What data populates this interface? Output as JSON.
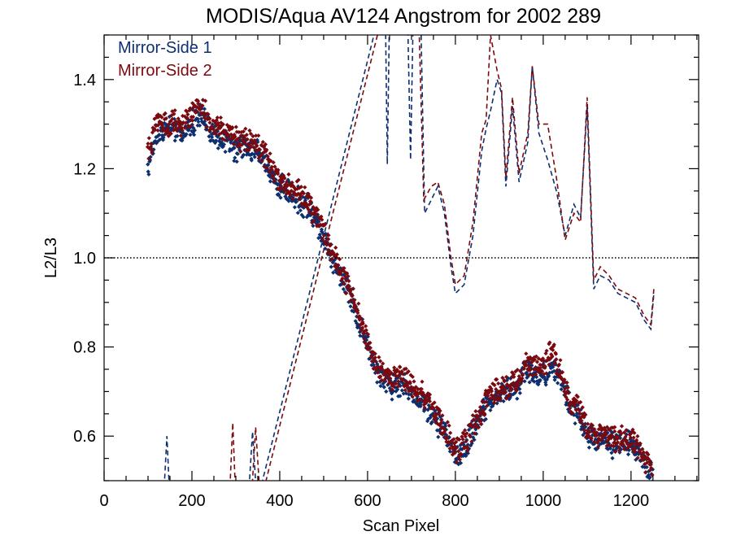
{
  "chart_data": {
    "type": "scatter",
    "title": "MODIS/Aqua AV124 Angstrom for 2002 289",
    "xlabel": "Scan Pixel",
    "ylabel": "L2/L3",
    "xlim": [
      0,
      1354
    ],
    "ylim": [
      0.5,
      1.5
    ],
    "x_ticks": [
      0,
      200,
      400,
      600,
      800,
      1000,
      1200
    ],
    "x_tick_labels": [
      "0",
      "200",
      "400",
      "600",
      "800",
      "1000",
      "1200"
    ],
    "y_ticks": [
      0.6,
      0.8,
      1.0,
      1.2,
      1.4
    ],
    "y_tick_labels": [
      "0.6",
      "0.8",
      "1.0",
      "1.2",
      "1.4"
    ],
    "reference_line": {
      "y": 1.0,
      "style": "dotted"
    },
    "legend_position": "top-left",
    "grid": false,
    "series": [
      {
        "name": "Mirror-Side 1",
        "color": "#0d2f6e",
        "marker": "diamond",
        "points_trend": [
          [
            100,
            1.2
          ],
          [
            120,
            1.28
          ],
          [
            150,
            1.29
          ],
          [
            180,
            1.28
          ],
          [
            200,
            1.3
          ],
          [
            220,
            1.33
          ],
          [
            240,
            1.28
          ],
          [
            260,
            1.27
          ],
          [
            280,
            1.26
          ],
          [
            300,
            1.24
          ],
          [
            320,
            1.25
          ],
          [
            340,
            1.24
          ],
          [
            360,
            1.23
          ],
          [
            380,
            1.19
          ],
          [
            400,
            1.16
          ],
          [
            420,
            1.15
          ],
          [
            440,
            1.13
          ],
          [
            460,
            1.12
          ],
          [
            480,
            1.09
          ],
          [
            500,
            1.05
          ],
          [
            520,
            1.0
          ],
          [
            540,
            0.96
          ],
          [
            560,
            0.92
          ],
          [
            580,
            0.86
          ],
          [
            600,
            0.8
          ],
          [
            620,
            0.75
          ],
          [
            640,
            0.72
          ],
          [
            660,
            0.71
          ],
          [
            680,
            0.72
          ],
          [
            700,
            0.7
          ],
          [
            720,
            0.68
          ],
          [
            740,
            0.66
          ],
          [
            760,
            0.63
          ],
          [
            780,
            0.6
          ],
          [
            800,
            0.55
          ],
          [
            820,
            0.57
          ],
          [
            840,
            0.61
          ],
          [
            860,
            0.65
          ],
          [
            880,
            0.68
          ],
          [
            900,
            0.69
          ],
          [
            920,
            0.7
          ],
          [
            940,
            0.71
          ],
          [
            960,
            0.75
          ],
          [
            980,
            0.74
          ],
          [
            1000,
            0.74
          ],
          [
            1020,
            0.76
          ],
          [
            1040,
            0.73
          ],
          [
            1060,
            0.67
          ],
          [
            1080,
            0.65
          ],
          [
            1100,
            0.6
          ],
          [
            1120,
            0.59
          ],
          [
            1140,
            0.6
          ],
          [
            1160,
            0.58
          ],
          [
            1180,
            0.59
          ],
          [
            1200,
            0.58
          ],
          [
            1220,
            0.56
          ],
          [
            1240,
            0.52
          ],
          [
            1250,
            0.51
          ]
        ],
        "dashed_line": [
          [
            135,
            0.45
          ],
          [
            143,
            0.6
          ],
          [
            150,
            0.45
          ],
          [
            328,
            0.45
          ],
          [
            338,
            0.61
          ],
          [
            348,
            0.45
          ],
          [
            640,
            1.6
          ],
          [
            645,
            1.21
          ],
          [
            650,
            1.55
          ],
          [
            660,
            1.6
          ],
          [
            690,
            1.6
          ],
          [
            698,
            1.22
          ],
          [
            705,
            1.6
          ],
          [
            720,
            1.6
          ],
          [
            730,
            1.1
          ],
          [
            745,
            1.13
          ],
          [
            760,
            1.16
          ],
          [
            775,
            1.1
          ],
          [
            790,
            0.98
          ],
          [
            800,
            0.92
          ],
          [
            820,
            0.94
          ],
          [
            840,
            1.05
          ],
          [
            860,
            1.24
          ],
          [
            870,
            1.29
          ],
          [
            880,
            1.33
          ],
          [
            895,
            1.4
          ],
          [
            905,
            1.37
          ],
          [
            915,
            1.16
          ],
          [
            930,
            1.34
          ],
          [
            945,
            1.17
          ],
          [
            965,
            1.26
          ],
          [
            975,
            1.43
          ],
          [
            990,
            1.28
          ],
          [
            1010,
            1.22
          ],
          [
            1030,
            1.15
          ],
          [
            1050,
            1.05
          ],
          [
            1070,
            1.12
          ],
          [
            1085,
            1.09
          ],
          [
            1100,
            1.34
          ],
          [
            1115,
            0.93
          ],
          [
            1130,
            0.96
          ],
          [
            1150,
            0.95
          ],
          [
            1170,
            0.92
          ],
          [
            1190,
            0.91
          ],
          [
            1210,
            0.9
          ],
          [
            1230,
            0.86
          ],
          [
            1245,
            0.84
          ],
          [
            1252,
            0.92
          ]
        ]
      },
      {
        "name": "Mirror-Side 2",
        "color": "#7a0a10",
        "marker": "diamond",
        "points_trend": [
          [
            100,
            1.23
          ],
          [
            120,
            1.31
          ],
          [
            150,
            1.3
          ],
          [
            180,
            1.3
          ],
          [
            200,
            1.32
          ],
          [
            220,
            1.35
          ],
          [
            240,
            1.3
          ],
          [
            260,
            1.29
          ],
          [
            280,
            1.28
          ],
          [
            300,
            1.27
          ],
          [
            320,
            1.26
          ],
          [
            340,
            1.26
          ],
          [
            360,
            1.24
          ],
          [
            380,
            1.21
          ],
          [
            400,
            1.17
          ],
          [
            420,
            1.16
          ],
          [
            440,
            1.15
          ],
          [
            460,
            1.13
          ],
          [
            480,
            1.1
          ],
          [
            500,
            1.06
          ],
          [
            520,
            1.01
          ],
          [
            540,
            0.97
          ],
          [
            560,
            0.93
          ],
          [
            580,
            0.87
          ],
          [
            600,
            0.81
          ],
          [
            620,
            0.76
          ],
          [
            640,
            0.73
          ],
          [
            660,
            0.73
          ],
          [
            680,
            0.74
          ],
          [
            700,
            0.71
          ],
          [
            720,
            0.7
          ],
          [
            740,
            0.67
          ],
          [
            760,
            0.64
          ],
          [
            780,
            0.61
          ],
          [
            800,
            0.56
          ],
          [
            820,
            0.58
          ],
          [
            840,
            0.62
          ],
          [
            860,
            0.66
          ],
          [
            880,
            0.7
          ],
          [
            900,
            0.7
          ],
          [
            920,
            0.71
          ],
          [
            940,
            0.73
          ],
          [
            960,
            0.76
          ],
          [
            980,
            0.76
          ],
          [
            1000,
            0.76
          ],
          [
            1020,
            0.79
          ],
          [
            1040,
            0.74
          ],
          [
            1060,
            0.68
          ],
          [
            1080,
            0.66
          ],
          [
            1100,
            0.61
          ],
          [
            1120,
            0.6
          ],
          [
            1140,
            0.61
          ],
          [
            1160,
            0.59
          ],
          [
            1180,
            0.6
          ],
          [
            1200,
            0.59
          ],
          [
            1220,
            0.57
          ],
          [
            1240,
            0.53
          ],
          [
            1250,
            0.52
          ]
        ],
        "dashed_line": [
          [
            285,
            0.45
          ],
          [
            293,
            0.63
          ],
          [
            300,
            0.45
          ],
          [
            335,
            0.45
          ],
          [
            345,
            0.62
          ],
          [
            356,
            0.45
          ],
          [
            648,
            1.6
          ],
          [
            655,
            1.55
          ],
          [
            700,
            1.6
          ],
          [
            705,
            1.55
          ],
          [
            715,
            1.6
          ],
          [
            728,
            1.13
          ],
          [
            745,
            1.16
          ],
          [
            760,
            1.17
          ],
          [
            775,
            1.12
          ],
          [
            790,
            1.0
          ],
          [
            800,
            0.94
          ],
          [
            820,
            0.96
          ],
          [
            840,
            1.08
          ],
          [
            860,
            1.28
          ],
          [
            870,
            1.31
          ],
          [
            880,
            1.5
          ],
          [
            895,
            1.42
          ],
          [
            905,
            1.38
          ],
          [
            915,
            1.18
          ],
          [
            930,
            1.36
          ],
          [
            945,
            1.19
          ],
          [
            965,
            1.28
          ],
          [
            975,
            1.43
          ],
          [
            990,
            1.3
          ],
          [
            1010,
            1.3
          ],
          [
            1030,
            1.18
          ],
          [
            1050,
            1.04
          ],
          [
            1070,
            1.1
          ],
          [
            1085,
            1.08
          ],
          [
            1100,
            1.36
          ],
          [
            1115,
            0.95
          ],
          [
            1130,
            0.98
          ],
          [
            1150,
            0.96
          ],
          [
            1170,
            0.93
          ],
          [
            1190,
            0.92
          ],
          [
            1210,
            0.91
          ],
          [
            1230,
            0.87
          ],
          [
            1245,
            0.85
          ],
          [
            1252,
            0.93
          ]
        ]
      }
    ]
  }
}
